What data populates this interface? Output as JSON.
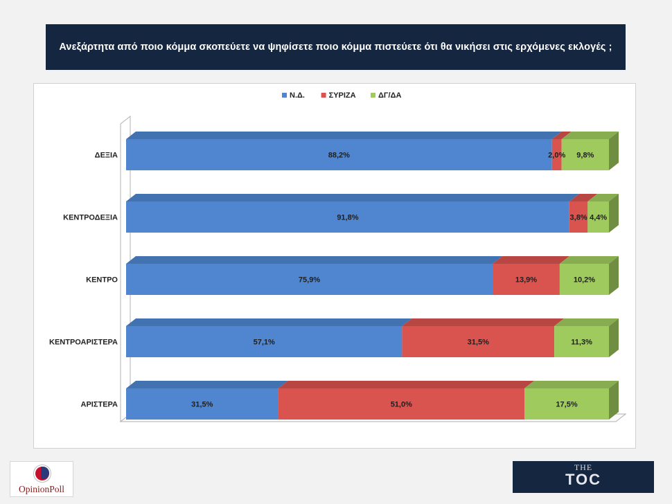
{
  "title": "Ανεξάρτητα από ποιο κόμμα σκοπεύετε να ψηφίσετε ποιο κόμμα πιστεύετε ότι θα νικήσει στις ερχόμενες εκλογές ;",
  "logos": {
    "left": "OpinionPoll",
    "right_top": "THE",
    "right_main": "TOC"
  },
  "chart_data": {
    "type": "bar",
    "orientation": "horizontal",
    "stacked": true,
    "percent_stacked": true,
    "three_d": true,
    "legend_position": "top",
    "categories": [
      "ΔΕΞΙΑ",
      "ΚΕΝΤΡΟΔΕΞΙΑ",
      "ΚΕΝΤΡΟ",
      "ΚΕΝΤΡΟΑΡΙΣΤΕΡΑ",
      "ΑΡΙΣΤΕΡΑ"
    ],
    "series": [
      {
        "name": "Ν.Δ.",
        "color": "#4f86cf",
        "values": [
          88.2,
          91.8,
          75.9,
          57.1,
          31.5
        ],
        "labels": [
          "88,2%",
          "91,8%",
          "75,9%",
          "57,1%",
          "31,5%"
        ]
      },
      {
        "name": "ΣΥΡΙΖΑ",
        "color": "#d9534f",
        "values": [
          2.0,
          3.8,
          13.9,
          31.5,
          51.0
        ],
        "labels": [
          "2,0%",
          "3,8%",
          "13,9%",
          "31,5%",
          "51,0%"
        ]
      },
      {
        "name": "ΔΓ/ΔΑ",
        "color": "#9fcb5e",
        "values": [
          9.8,
          4.4,
          10.2,
          11.3,
          17.5
        ],
        "labels": [
          "9,8%",
          "4,4%",
          "10,2%",
          "11,3%",
          "17,5%"
        ]
      }
    ]
  }
}
